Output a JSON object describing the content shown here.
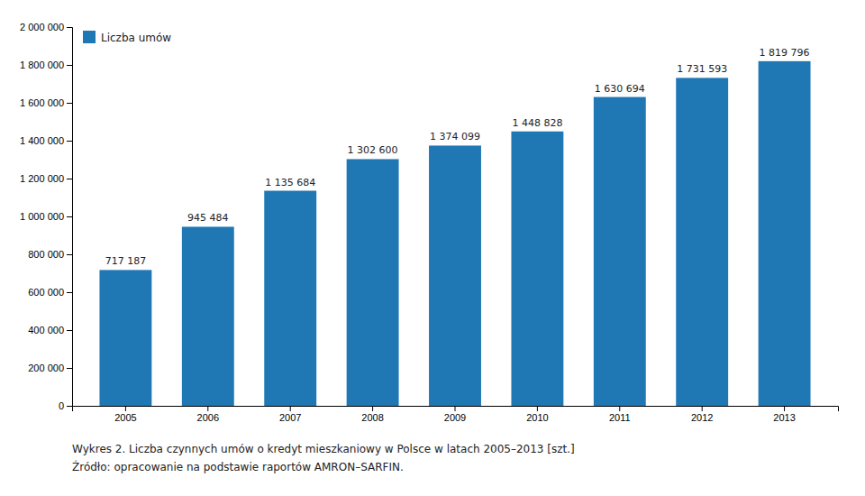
{
  "chart_data": {
    "type": "bar",
    "categories": [
      "2005",
      "2006",
      "2007",
      "2008",
      "2009",
      "2010",
      "2011",
      "2012",
      "2013"
    ],
    "series": [
      {
        "name": "Liczba umów",
        "values": [
          717187,
          945484,
          1135684,
          1302600,
          1374099,
          1448828,
          1630694,
          1731593,
          1819796
        ],
        "value_labels": [
          "717 187",
          "945 484",
          "1 135 684",
          "1 302 600",
          "1 374 099",
          "1 448 828",
          "1 630 694",
          "1 731 593",
          "1 819 796"
        ]
      }
    ],
    "ylim": [
      0,
      2000000
    ],
    "yticks": [
      0,
      {
        "value": 200000,
        "label": "200 000"
      },
      {
        "value": 400000,
        "label": "400 000"
      },
      {
        "value": 600000,
        "label": "600 000"
      },
      {
        "value": 800000,
        "label": "800 000"
      },
      {
        "value": 1000000,
        "label": "1 000 000"
      },
      {
        "value": 1200000,
        "label": "1 200 000"
      },
      {
        "value": 1400000,
        "label": "1 400 000"
      },
      {
        "value": 1600000,
        "label": "1 600 000"
      },
      {
        "value": 1800000,
        "label": "1 800 000"
      },
      {
        "value": 2000000,
        "label": "2 000 000"
      }
    ],
    "annotations": [
      "Wykres 2. Liczba czynnych umów o kredyt mieszkaniowy w Polsce w latach 2005–2013 [szt.]",
      "Źródło: opracowanie na podstawie raportów AMRON–SARFIN."
    ],
    "legend": "upper left",
    "data_labels": true,
    "grid": false
  }
}
